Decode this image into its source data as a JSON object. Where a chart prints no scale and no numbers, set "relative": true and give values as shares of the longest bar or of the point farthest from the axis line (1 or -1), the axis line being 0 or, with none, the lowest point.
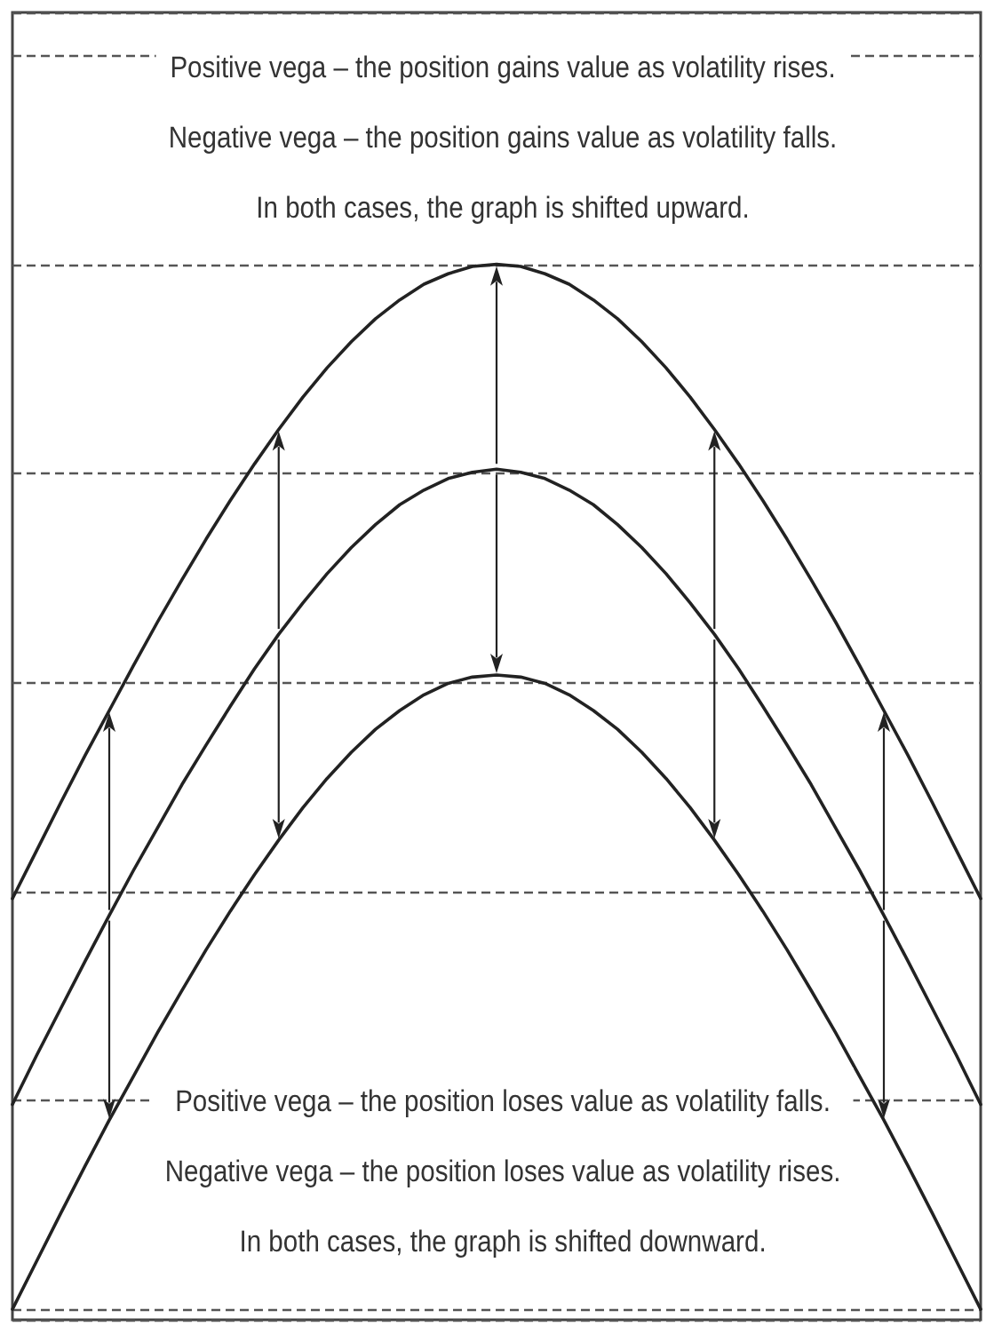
{
  "chart_data": {
    "type": "line",
    "relative": true,
    "grid": "y",
    "marker": "none",
    "categories": [
      null,
      null,
      null,
      null,
      null,
      null,
      null,
      null,
      null,
      null,
      null,
      null,
      null,
      null,
      null,
      null,
      null,
      null,
      null,
      null,
      null,
      null,
      null,
      null,
      null,
      null,
      null,
      null,
      null,
      null,
      null,
      null,
      null,
      null,
      null,
      null,
      null,
      null,
      null,
      null,
      null
    ],
    "series": [
      {
        "color": "#222222",
        "values": [
          0.393,
          0.439,
          0.485,
          0.53,
          0.573,
          0.616,
          0.658,
          0.698,
          0.737,
          0.774,
          0.809,
          0.842,
          0.873,
          0.901,
          0.926,
          0.948,
          0.966,
          0.981,
          0.991,
          0.998,
          1,
          0.998,
          0.991,
          0.981,
          0.966,
          0.948,
          0.926,
          0.901,
          0.873,
          0.842,
          0.809,
          0.774,
          0.737,
          0.698,
          0.658,
          0.616,
          0.573,
          0.53,
          0.485,
          0.439,
          0.393
        ]
      },
      {
        "color": "#222222",
        "values": [
          0.196,
          0.243,
          0.288,
          0.333,
          0.377,
          0.42,
          0.461,
          0.502,
          0.54,
          0.577,
          0.613,
          0.646,
          0.676,
          0.704,
          0.729,
          0.751,
          0.77,
          0.784,
          0.795,
          0.801,
          0.804,
          0.801,
          0.795,
          0.784,
          0.77,
          0.751,
          0.729,
          0.704,
          0.676,
          0.646,
          0.613,
          0.577,
          0.54,
          0.502,
          0.461,
          0.42,
          0.377,
          0.333,
          0.288,
          0.243,
          0.196
        ]
      },
      {
        "color": "#222222",
        "values": [
          0,
          0.046,
          0.092,
          0.137,
          0.181,
          0.223,
          0.265,
          0.305,
          0.344,
          0.381,
          0.416,
          0.449,
          0.48,
          0.508,
          0.533,
          0.555,
          0.573,
          0.588,
          0.599,
          0.605,
          0.607,
          0.605,
          0.599,
          0.588,
          0.573,
          0.555,
          0.533,
          0.508,
          0.48,
          0.449,
          0.416,
          0.381,
          0.344,
          0.305,
          0.265,
          0.223,
          0.181,
          0.137,
          0.092,
          0.046,
          0
        ]
      }
    ],
    "annotations": [
      "Positive vega – the position gains value as volatility rises.\nNegative vega – the position gains value as volatility falls.\nIn both cases, the graph is shifted upward.",
      "Positive vega – the position loses value as volatility falls.\nNegative vega – the position loses value as volatility rises.\nIn both cases, the graph is shifted downward."
    ]
  }
}
